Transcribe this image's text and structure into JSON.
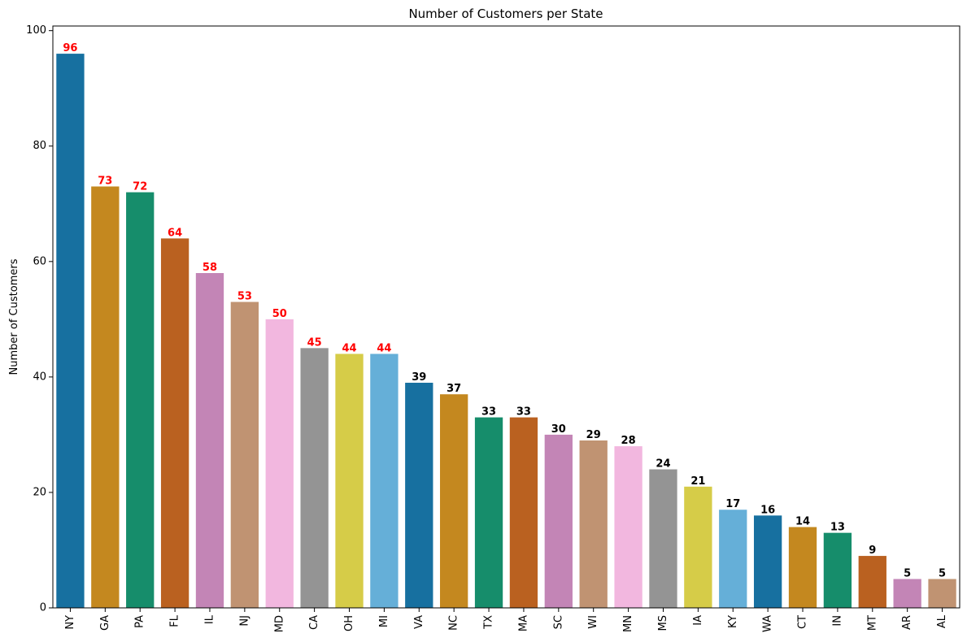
{
  "chart_data": {
    "type": "bar",
    "title": "Number of Customers per State",
    "xlabel": "",
    "ylabel": "Number of Customers",
    "ylim": [
      0,
      100.8
    ],
    "yticks": [
      0,
      20,
      40,
      60,
      80,
      100
    ],
    "categories": [
      "NY",
      "GA",
      "PA",
      "FL",
      "IL",
      "NJ",
      "MD",
      "CA",
      "OH",
      "MI",
      "VA",
      "NC",
      "TX",
      "MA",
      "SC",
      "WI",
      "MN",
      "MS",
      "IA",
      "KY",
      "WA",
      "CT",
      "IN",
      "MT",
      "AR",
      "AL"
    ],
    "values": [
      96,
      73,
      72,
      64,
      58,
      53,
      50,
      45,
      44,
      44,
      39,
      37,
      33,
      33,
      30,
      29,
      28,
      24,
      21,
      17,
      16,
      14,
      13,
      9,
      5,
      5
    ],
    "palette": [
      "#1770a0",
      "#c4881f",
      "#168d6b",
      "#ba6120",
      "#c385b6",
      "#c09372",
      "#f2b7df",
      "#949494",
      "#d6cc48",
      "#65afd8"
    ],
    "highlight_threshold": 40,
    "label_color_high": "#ff0000",
    "label_color_low": "#000000",
    "grid": false,
    "legend": "none"
  }
}
